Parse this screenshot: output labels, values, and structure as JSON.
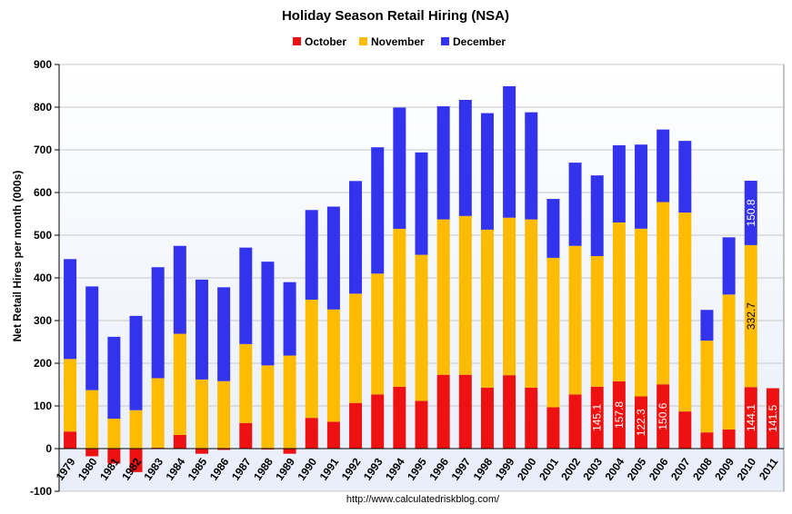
{
  "chart_data": {
    "type": "bar",
    "stacked": true,
    "title": "Holiday Season Retail Hiring (NSA)",
    "ylabel": "Net Retail Hires per month (000s)",
    "xlabel": "",
    "ylim": [
      -100,
      900
    ],
    "yticks": [
      -100,
      0,
      100,
      200,
      300,
      400,
      500,
      600,
      700,
      800,
      900
    ],
    "grid": true,
    "legend_position": "top-center",
    "source": "http://www.calculatedriskblog.com/",
    "categories": [
      "1979",
      "1980",
      "1981",
      "1982",
      "1983",
      "1984",
      "1985",
      "1986",
      "1987",
      "1988",
      "1989",
      "1990",
      "1991",
      "1992",
      "1993",
      "1994",
      "1995",
      "1996",
      "1997",
      "1998",
      "1999",
      "2000",
      "2001",
      "2002",
      "2003",
      "2004",
      "2005",
      "2006",
      "2007",
      "2008",
      "2009",
      "2010",
      "2011"
    ],
    "category_labels": [
      "1979",
      "1980",
      "1981",
      "1982",
      "1983",
      "1984",
      "1985",
      "1986",
      "1987",
      "1988",
      "1989",
      "1990",
      "1991",
      "1992",
      "1993",
      "1994",
      "1995",
      "1996",
      "1997",
      "1998",
      "1999",
      "2000",
      "2001",
      "2002",
      "2003",
      "2004",
      "2005",
      "2006",
      "2007",
      "2008",
      "2009",
      "2010",
      "2011"
    ],
    "series": [
      {
        "name": "October",
        "color": "#ee1111",
        "values": [
          40,
          -18,
          -35,
          -55,
          2,
          32,
          -12,
          -3,
          60,
          -2,
          -12,
          72,
          63,
          107,
          127,
          145,
          112,
          173,
          173,
          143,
          172,
          143,
          97,
          127,
          145.1,
          157.8,
          122.3,
          150.6,
          87,
          38,
          45,
          144.1,
          141.5
        ]
      },
      {
        "name": "November",
        "color": "#ffbb00",
        "values": [
          170,
          137,
          70,
          90,
          163,
          237,
          162,
          158,
          185,
          195,
          218,
          277,
          263,
          256,
          283,
          370,
          342,
          364,
          372,
          370,
          369,
          394,
          350,
          348,
          306,
          372,
          393,
          427,
          466,
          215,
          316,
          332.7,
          0
        ]
      },
      {
        "name": "December",
        "color": "#3333ee",
        "values": [
          234,
          243,
          192,
          221,
          260,
          206,
          234,
          220,
          226,
          243,
          172,
          210,
          241,
          264,
          296,
          284,
          240,
          265,
          272,
          273,
          308,
          251,
          138,
          195,
          189,
          181,
          197,
          170,
          168,
          72,
          134,
          150.8,
          0
        ]
      }
    ],
    "data_labels": [
      {
        "category": "2003",
        "series": "October",
        "text": "145.1"
      },
      {
        "category": "2004",
        "series": "October",
        "text": "157.8"
      },
      {
        "category": "2005",
        "series": "October",
        "text": "122.3"
      },
      {
        "category": "2006",
        "series": "October",
        "text": "150.6"
      },
      {
        "category": "2010",
        "series": "October",
        "text": "144.1"
      },
      {
        "category": "2011",
        "series": "October",
        "text": "141.5"
      },
      {
        "category": "2010",
        "series": "November",
        "text": "332.7"
      },
      {
        "category": "2010",
        "series": "December",
        "text": "150.8"
      }
    ]
  }
}
